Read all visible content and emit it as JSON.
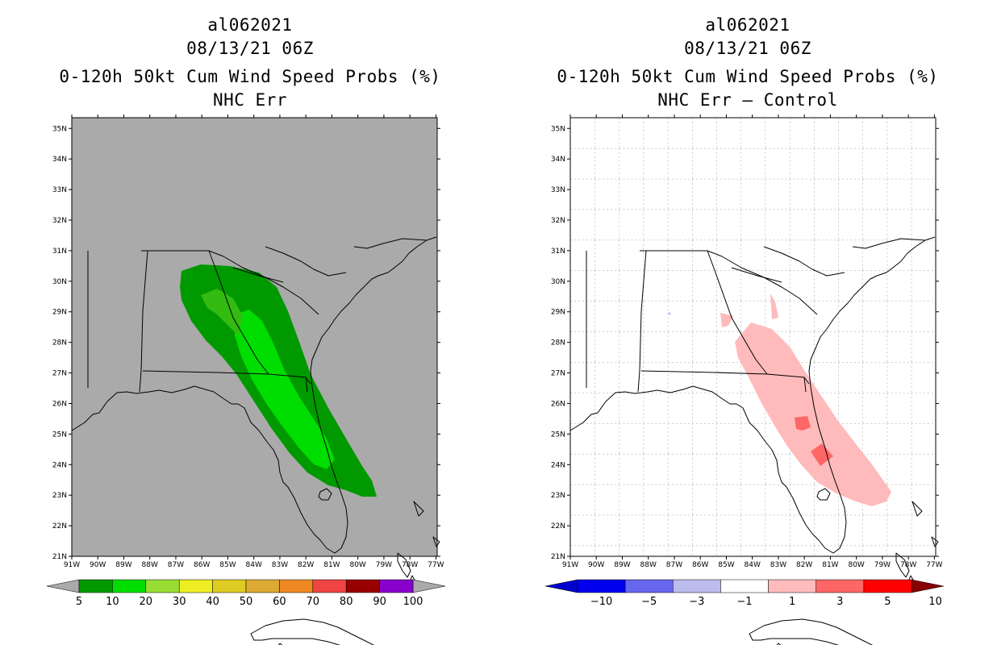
{
  "left": {
    "storm_id": "al062021",
    "datetime": "08/13/21 06Z",
    "title": "0-120h 50kt Cum Wind Speed Probs (%)",
    "subtitle": "NHC Err",
    "background": "#aaaaaa",
    "colorbar": {
      "colors": [
        "#009900",
        "#00dd00",
        "#99dd33",
        "#eeee22",
        "#ddcc22",
        "#ddaa33",
        "#ee8822",
        "#ee4444",
        "#990000",
        "#8800cc"
      ],
      "labels": [
        "5",
        "10",
        "20",
        "30",
        "40",
        "50",
        "60",
        "70",
        "80",
        "90",
        "100"
      ]
    }
  },
  "right": {
    "storm_id": "al062021",
    "datetime": "08/13/21 06Z",
    "title": "0-120h 50kt Cum Wind Speed Probs (%)",
    "subtitle": "NHC Err – Control",
    "background": "#ffffff",
    "colorbar": {
      "colors": [
        "#0000cc",
        "#0000ee",
        "#6666ee",
        "#bbbbee",
        "#ffffff",
        "#ffbbbb",
        "#ff6666",
        "#ff0000",
        "#880000"
      ],
      "labels": [
        "−10",
        "−5",
        "−3",
        "−1",
        "1",
        "3",
        "5",
        "10"
      ]
    }
  },
  "axes": {
    "lat_labels": [
      "21N",
      "22N",
      "23N",
      "24N",
      "25N",
      "26N",
      "27N",
      "28N",
      "29N",
      "30N",
      "31N",
      "32N",
      "33N",
      "34N",
      "35N"
    ],
    "lon_labels": [
      "91W",
      "90W",
      "89W",
      "88W",
      "87W",
      "86W",
      "85W",
      "84W",
      "83W",
      "82W",
      "81W",
      "80W",
      "79W",
      "78W",
      "77W"
    ]
  }
}
